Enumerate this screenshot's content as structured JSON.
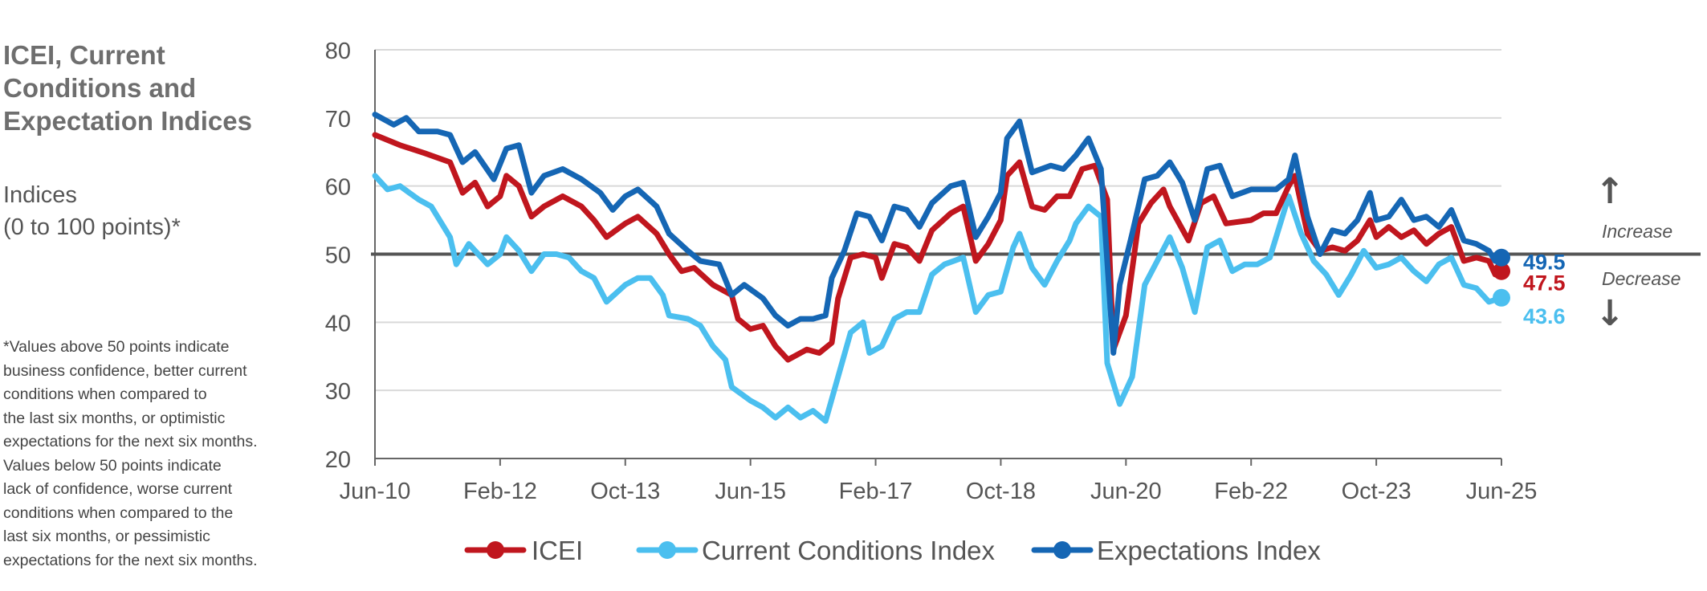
{
  "panel": {
    "title_line1": "ICEI, Current",
    "title_line2": "Conditions and",
    "title_line3": "Expectation Indices",
    "subtitle_line1": "Indices",
    "subtitle_line2": "(0 to 100 points)*",
    "footnote_lines": [
      "*Values above 50 points indicate",
      "business confidence, better current",
      "conditions when compared to",
      "the last six months, or optimistic",
      "expectations for the next six months.",
      "Values below 50 points indicate",
      "lack of confidence, worse current",
      "conditions when compared to the",
      "last six months, or pessimistic",
      "expectations for the next six months."
    ]
  },
  "annotations": {
    "increase": "Increase",
    "decrease": "Decrease",
    "up_arrow": "↑",
    "down_arrow": "↓"
  },
  "chart_data": {
    "type": "line",
    "title": "ICEI, Current Conditions and Expectation Indices",
    "xlabel": "",
    "ylabel": "Indices (0 to 100 points)*",
    "x_start": "Jun-10",
    "x_end": "Jun-25",
    "x_ticks": [
      "Jun-10",
      "Feb-12",
      "Oct-13",
      "Jun-15",
      "Feb-17",
      "Oct-18",
      "Jun-20",
      "Feb-22",
      "Oct-23",
      "Jun-25"
    ],
    "y_ticks": [
      20,
      30,
      40,
      50,
      60,
      70,
      80
    ],
    "ylim": [
      20,
      80
    ],
    "reference_line": 50,
    "grid": true,
    "legend_position": "bottom",
    "series": [
      {
        "name": "ICEI",
        "color": "#c0161e",
        "end_label": "47.5",
        "points": [
          [
            "Jun-10",
            67.5
          ],
          [
            "Oct-10",
            66.0
          ],
          [
            "Feb-11",
            64.8
          ],
          [
            "Jun-11",
            63.5
          ],
          [
            "Aug-11",
            59.0
          ],
          [
            "Oct-11",
            60.5
          ],
          [
            "Dec-11",
            57.0
          ],
          [
            "Feb-12",
            58.5
          ],
          [
            "Mar-12",
            61.5
          ],
          [
            "May-12",
            60.0
          ],
          [
            "Jul-12",
            55.5
          ],
          [
            "Sep-12",
            57.0
          ],
          [
            "Dec-12",
            58.5
          ],
          [
            "Mar-13",
            57.0
          ],
          [
            "May-13",
            55.0
          ],
          [
            "Jul-13",
            52.5
          ],
          [
            "Oct-13",
            54.5
          ],
          [
            "Dec-13",
            55.5
          ],
          [
            "Mar-14",
            53.0
          ],
          [
            "May-14",
            50.0
          ],
          [
            "Jul-14",
            47.5
          ],
          [
            "Sep-14",
            48.0
          ],
          [
            "Dec-14",
            45.5
          ],
          [
            "Mar-15",
            44.0
          ],
          [
            "Apr-15",
            40.5
          ],
          [
            "Jun-15",
            39.0
          ],
          [
            "Aug-15",
            39.5
          ],
          [
            "Oct-15",
            36.5
          ],
          [
            "Dec-15",
            34.5
          ],
          [
            "Mar-16",
            36.0
          ],
          [
            "May-16",
            35.5
          ],
          [
            "Jul-16",
            37.0
          ],
          [
            "Aug-16",
            43.5
          ],
          [
            "Oct-16",
            49.5
          ],
          [
            "Dec-16",
            50.0
          ],
          [
            "Feb-17",
            49.5
          ],
          [
            "Mar-17",
            46.5
          ],
          [
            "May-17",
            51.5
          ],
          [
            "Jul-17",
            51.0
          ],
          [
            "Sep-17",
            49.0
          ],
          [
            "Nov-17",
            53.5
          ],
          [
            "Feb-18",
            56.0
          ],
          [
            "Apr-18",
            57.0
          ],
          [
            "Jun-18",
            49.0
          ],
          [
            "Aug-18",
            51.5
          ],
          [
            "Oct-18",
            55.0
          ],
          [
            "Nov-18",
            61.5
          ],
          [
            "Jan-19",
            63.5
          ],
          [
            "Mar-19",
            57.0
          ],
          [
            "May-19",
            56.5
          ],
          [
            "Jul-19",
            58.5
          ],
          [
            "Sep-19",
            58.5
          ],
          [
            "Nov-19",
            62.5
          ],
          [
            "Jan-20",
            63.0
          ],
          [
            "Mar-20",
            58.0
          ],
          [
            "Apr-20",
            36.0
          ],
          [
            "Jun-20",
            41.0
          ],
          [
            "Aug-20",
            54.5
          ],
          [
            "Oct-20",
            57.5
          ],
          [
            "Dec-20",
            59.5
          ],
          [
            "Jan-21",
            57.0
          ],
          [
            "Apr-21",
            52.0
          ],
          [
            "Jun-21",
            57.5
          ],
          [
            "Aug-21",
            58.5
          ],
          [
            "Oct-21",
            54.5
          ],
          [
            "Feb-22",
            55.0
          ],
          [
            "Apr-22",
            56.0
          ],
          [
            "Jun-22",
            56.0
          ],
          [
            "Aug-22",
            60.0
          ],
          [
            "Sep-22",
            61.5
          ],
          [
            "Nov-22",
            53.0
          ],
          [
            "Jan-23",
            50.5
          ],
          [
            "Mar-23",
            51.0
          ],
          [
            "May-23",
            50.5
          ],
          [
            "Jul-23",
            52.0
          ],
          [
            "Sep-23",
            55.0
          ],
          [
            "Oct-23",
            52.5
          ],
          [
            "Dec-23",
            54.0
          ],
          [
            "Feb-24",
            52.5
          ],
          [
            "Apr-24",
            53.5
          ],
          [
            "Jun-24",
            51.5
          ],
          [
            "Aug-24",
            53.0
          ],
          [
            "Oct-24",
            54.0
          ],
          [
            "Dec-24",
            49.0
          ],
          [
            "Feb-25",
            49.5
          ],
          [
            "Apr-25",
            49.0
          ],
          [
            "May-25",
            47.0
          ],
          [
            "Jun-25",
            47.5
          ]
        ]
      },
      {
        "name": "Current Conditions Index",
        "color": "#4bbfef",
        "end_label": "43.6",
        "points": [
          [
            "Jun-10",
            61.5
          ],
          [
            "Aug-10",
            59.5
          ],
          [
            "Oct-10",
            60.0
          ],
          [
            "Jan-11",
            58.0
          ],
          [
            "Mar-11",
            57.0
          ],
          [
            "Jun-11",
            52.5
          ],
          [
            "Jul-11",
            48.5
          ],
          [
            "Sep-11",
            51.5
          ],
          [
            "Dec-11",
            48.5
          ],
          [
            "Feb-12",
            50.0
          ],
          [
            "Mar-12",
            52.5
          ],
          [
            "May-12",
            50.5
          ],
          [
            "Jul-12",
            47.5
          ],
          [
            "Sep-12",
            50.0
          ],
          [
            "Nov-12",
            50.0
          ],
          [
            "Jan-13",
            49.5
          ],
          [
            "Mar-13",
            47.5
          ],
          [
            "May-13",
            46.5
          ],
          [
            "Jul-13",
            43.0
          ],
          [
            "Oct-13",
            45.5
          ],
          [
            "Dec-13",
            46.5
          ],
          [
            "Feb-14",
            46.5
          ],
          [
            "Apr-14",
            44.0
          ],
          [
            "May-14",
            41.0
          ],
          [
            "Aug-14",
            40.5
          ],
          [
            "Oct-14",
            39.5
          ],
          [
            "Dec-14",
            36.5
          ],
          [
            "Feb-15",
            34.5
          ],
          [
            "Mar-15",
            30.5
          ],
          [
            "Jun-15",
            28.5
          ],
          [
            "Aug-15",
            27.5
          ],
          [
            "Oct-15",
            26.0
          ],
          [
            "Dec-15",
            27.5
          ],
          [
            "Feb-16",
            26.0
          ],
          [
            "Apr-16",
            27.0
          ],
          [
            "Jun-16",
            25.5
          ],
          [
            "Aug-16",
            32.0
          ],
          [
            "Oct-16",
            38.5
          ],
          [
            "Dec-16",
            40.0
          ],
          [
            "Jan-17",
            35.5
          ],
          [
            "Mar-17",
            36.5
          ],
          [
            "May-17",
            40.5
          ],
          [
            "Jul-17",
            41.5
          ],
          [
            "Sep-17",
            41.5
          ],
          [
            "Nov-17",
            47.0
          ],
          [
            "Jan-18",
            48.5
          ],
          [
            "Apr-18",
            49.5
          ],
          [
            "Jun-18",
            41.5
          ],
          [
            "Aug-18",
            44.0
          ],
          [
            "Oct-18",
            44.5
          ],
          [
            "Dec-18",
            51.0
          ],
          [
            "Jan-19",
            53.0
          ],
          [
            "Mar-19",
            48.0
          ],
          [
            "May-19",
            45.5
          ],
          [
            "Jul-19",
            49.0
          ],
          [
            "Sep-19",
            52.0
          ],
          [
            "Oct-19",
            54.5
          ],
          [
            "Dec-19",
            57.0
          ],
          [
            "Feb-20",
            55.5
          ],
          [
            "Mar-20",
            34.0
          ],
          [
            "May-20",
            28.0
          ],
          [
            "Jul-20",
            32.0
          ],
          [
            "Sep-20",
            45.5
          ],
          [
            "Nov-20",
            49.0
          ],
          [
            "Jan-21",
            52.5
          ],
          [
            "Mar-21",
            48.0
          ],
          [
            "May-21",
            41.5
          ],
          [
            "Jul-21",
            51.0
          ],
          [
            "Sep-21",
            52.0
          ],
          [
            "Nov-21",
            47.5
          ],
          [
            "Jan-22",
            48.5
          ],
          [
            "Mar-22",
            48.5
          ],
          [
            "May-22",
            49.5
          ],
          [
            "Aug-22",
            58.5
          ],
          [
            "Oct-22",
            53.0
          ],
          [
            "Dec-22",
            49.0
          ],
          [
            "Feb-23",
            47.0
          ],
          [
            "Apr-23",
            44.0
          ],
          [
            "Jun-23",
            47.0
          ],
          [
            "Aug-23",
            50.5
          ],
          [
            "Oct-23",
            48.0
          ],
          [
            "Dec-23",
            48.5
          ],
          [
            "Feb-24",
            49.5
          ],
          [
            "Apr-24",
            47.5
          ],
          [
            "Jun-24",
            46.0
          ],
          [
            "Aug-24",
            48.5
          ],
          [
            "Oct-24",
            49.5
          ],
          [
            "Dec-24",
            45.5
          ],
          [
            "Feb-25",
            45.0
          ],
          [
            "Apr-25",
            43.0
          ],
          [
            "Jun-25",
            43.6
          ]
        ]
      },
      {
        "name": "Expectations Index",
        "color": "#1566b4",
        "end_label": "49.5",
        "points": [
          [
            "Jun-10",
            70.5
          ],
          [
            "Sep-10",
            69.0
          ],
          [
            "Nov-10",
            70.0
          ],
          [
            "Jan-11",
            68.0
          ],
          [
            "Apr-11",
            68.0
          ],
          [
            "Jun-11",
            67.5
          ],
          [
            "Aug-11",
            63.5
          ],
          [
            "Oct-11",
            65.0
          ],
          [
            "Jan-12",
            61.0
          ],
          [
            "Mar-12",
            65.5
          ],
          [
            "May-12",
            66.0
          ],
          [
            "Jul-12",
            59.0
          ],
          [
            "Sep-12",
            61.5
          ],
          [
            "Dec-12",
            62.5
          ],
          [
            "Mar-13",
            61.0
          ],
          [
            "Jun-13",
            59.0
          ],
          [
            "Aug-13",
            56.5
          ],
          [
            "Oct-13",
            58.5
          ],
          [
            "Dec-13",
            59.5
          ],
          [
            "Mar-14",
            57.0
          ],
          [
            "May-14",
            53.0
          ],
          [
            "Aug-14",
            50.5
          ],
          [
            "Oct-14",
            49.0
          ],
          [
            "Jan-15",
            48.5
          ],
          [
            "Mar-15",
            44.0
          ],
          [
            "May-15",
            45.5
          ],
          [
            "Aug-15",
            43.5
          ],
          [
            "Oct-15",
            41.0
          ],
          [
            "Dec-15",
            39.5
          ],
          [
            "Feb-16",
            40.5
          ],
          [
            "Apr-16",
            40.5
          ],
          [
            "Jun-16",
            41.0
          ],
          [
            "Jul-16",
            46.5
          ],
          [
            "Sep-16",
            50.5
          ],
          [
            "Nov-16",
            56.0
          ],
          [
            "Jan-17",
            55.5
          ],
          [
            "Mar-17",
            52.0
          ],
          [
            "May-17",
            57.0
          ],
          [
            "Jul-17",
            56.5
          ],
          [
            "Sep-17",
            54.0
          ],
          [
            "Nov-17",
            57.5
          ],
          [
            "Feb-18",
            60.0
          ],
          [
            "Apr-18",
            60.5
          ],
          [
            "Jun-18",
            52.5
          ],
          [
            "Aug-18",
            55.5
          ],
          [
            "Oct-18",
            59.0
          ],
          [
            "Nov-18",
            67.0
          ],
          [
            "Jan-19",
            69.5
          ],
          [
            "Mar-19",
            62.0
          ],
          [
            "Jun-19",
            63.0
          ],
          [
            "Aug-19",
            62.5
          ],
          [
            "Oct-19",
            64.5
          ],
          [
            "Dec-19",
            67.0
          ],
          [
            "Feb-20",
            62.5
          ],
          [
            "Apr-20",
            35.5
          ],
          [
            "May-20",
            45.5
          ],
          [
            "Jul-20",
            53.0
          ],
          [
            "Sep-20",
            61.0
          ],
          [
            "Nov-20",
            61.5
          ],
          [
            "Jan-21",
            63.5
          ],
          [
            "Mar-21",
            60.5
          ],
          [
            "May-21",
            55.0
          ],
          [
            "Jul-21",
            62.5
          ],
          [
            "Sep-21",
            63.0
          ],
          [
            "Nov-21",
            58.5
          ],
          [
            "Feb-22",
            59.5
          ],
          [
            "Apr-22",
            59.5
          ],
          [
            "Jun-22",
            59.5
          ],
          [
            "Aug-22",
            61.0
          ],
          [
            "Sep-22",
            64.5
          ],
          [
            "Nov-22",
            55.5
          ],
          [
            "Jan-23",
            50.0
          ],
          [
            "Mar-23",
            53.5
          ],
          [
            "May-23",
            53.0
          ],
          [
            "Jul-23",
            55.0
          ],
          [
            "Sep-23",
            59.0
          ],
          [
            "Oct-23",
            55.0
          ],
          [
            "Dec-23",
            55.5
          ],
          [
            "Feb-24",
            58.0
          ],
          [
            "Apr-24",
            55.0
          ],
          [
            "Jun-24",
            55.5
          ],
          [
            "Aug-24",
            54.0
          ],
          [
            "Oct-24",
            56.5
          ],
          [
            "Dec-24",
            52.0
          ],
          [
            "Feb-25",
            51.5
          ],
          [
            "Apr-25",
            50.5
          ],
          [
            "May-25",
            49.0
          ],
          [
            "Jun-25",
            49.5
          ]
        ]
      }
    ]
  }
}
